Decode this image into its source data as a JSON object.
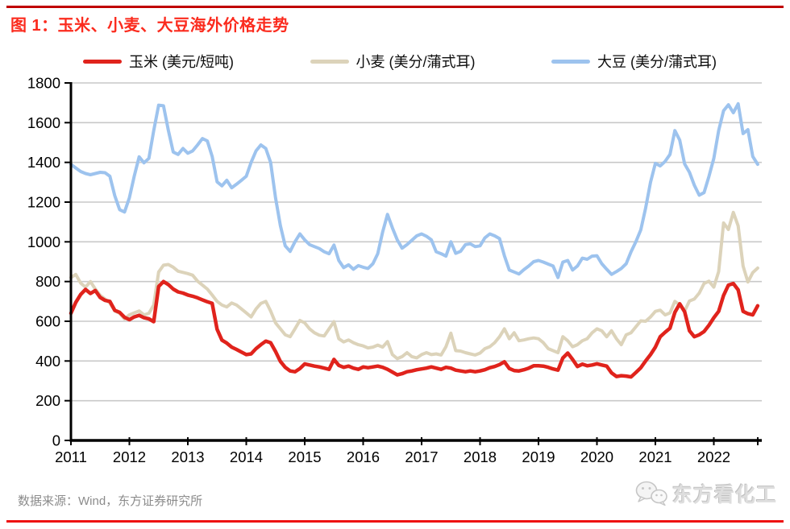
{
  "page": {
    "title": "图 1：玉米、小麦、大豆海外价格走势",
    "source": "数据来源：Wind，东方证券研究所",
    "watermark": {
      "icon": "wechat-icon",
      "text": "东方看化工"
    },
    "colors": {
      "title_text": "#FB2B1E",
      "top_rule": "#C00000",
      "bottom_rule": "#EE1111",
      "source_text": "#8C8C8C",
      "watermark_text": "#DEDEDE",
      "axis": "#000000",
      "gridline": "#C8C8C8",
      "corn": "#E0231C",
      "wheat": "#DCD3BA",
      "soybean": "#9DC3EE"
    }
  },
  "chart_data": {
    "type": "line",
    "title": "图 1：玉米、小麦、大豆海外价格走势",
    "legend_position": "top",
    "grid": "horizontal",
    "x_axis": {
      "start_year": 2011,
      "interval": "monthly",
      "tick_labels": [
        "2011",
        "2012",
        "2013",
        "2014",
        "2015",
        "2016",
        "2017",
        "2018",
        "2019",
        "2020",
        "2021",
        "2022"
      ]
    },
    "y_axis": {
      "min": 0,
      "max": 1800,
      "tick_step": 200,
      "tick_labels": [
        "0",
        "200",
        "400",
        "600",
        "800",
        "1000",
        "1200",
        "1400",
        "1600",
        "1800"
      ]
    },
    "series": [
      {
        "name": "玉米 (美元/短吨)",
        "color": "#E0231C",
        "values": [
          640,
          695,
          735,
          760,
          740,
          755,
          720,
          705,
          700,
          655,
          645,
          620,
          608,
          622,
          630,
          618,
          612,
          598,
          775,
          800,
          785,
          762,
          748,
          742,
          732,
          726,
          718,
          708,
          698,
          690,
          560,
          505,
          490,
          470,
          458,
          445,
          432,
          436,
          462,
          482,
          500,
          492,
          448,
          398,
          368,
          350,
          346,
          362,
          385,
          380,
          374,
          370,
          364,
          358,
          408,
          378,
          368,
          374,
          364,
          358,
          370,
          366,
          370,
          374,
          368,
          358,
          344,
          330,
          336,
          346,
          350,
          356,
          360,
          364,
          370,
          364,
          358,
          368,
          364,
          354,
          350,
          346,
          350,
          346,
          350,
          356,
          366,
          372,
          382,
          396,
          362,
          352,
          350,
          356,
          364,
          376,
          376,
          374,
          368,
          360,
          354,
          415,
          440,
          408,
          372,
          384,
          376,
          380,
          386,
          380,
          374,
          340,
          322,
          326,
          324,
          320,
          342,
          366,
          400,
          432,
          470,
          522,
          545,
          565,
          645,
          688,
          648,
          552,
          522,
          532,
          548,
          580,
          618,
          650,
          730,
          782,
          790,
          758,
          650,
          638,
          632,
          678
        ]
      },
      {
        "name": "小麦 (美分/蒲式耳)",
        "color": "#DCD3BA",
        "values": [
          820,
          836,
          792,
          772,
          800,
          762,
          730,
          712,
          692,
          652,
          640,
          612,
          632,
          642,
          652,
          632,
          640,
          682,
          848,
          882,
          886,
          872,
          852,
          846,
          840,
          832,
          802,
          782,
          762,
          732,
          700,
          682,
          672,
          692,
          682,
          662,
          642,
          622,
          662,
          690,
          700,
          652,
          592,
          562,
          532,
          522,
          562,
          604,
          592,
          562,
          542,
          530,
          526,
          562,
          598,
          512,
          496,
          506,
          492,
          482,
          476,
          466,
          470,
          480,
          470,
          498,
          432,
          412,
          422,
          442,
          422,
          416,
          432,
          442,
          432,
          436,
          430,
          472,
          540,
          452,
          450,
          442,
          436,
          430,
          440,
          462,
          472,
          492,
          522,
          562,
          512,
          542,
          502,
          506,
          512,
          516,
          512,
          492,
          462,
          452,
          442,
          522,
          502,
          472,
          482,
          502,
          512,
          542,
          562,
          552,
          522,
          552,
          512,
          482,
          532,
          542,
          572,
          602,
          600,
          622,
          650,
          656,
          632,
          642,
          700,
          682,
          652,
          702,
          712,
          742,
          790,
          802,
          772,
          850,
          1095,
          1062,
          1148,
          1080,
          878,
          798,
          845,
          868
        ]
      },
      {
        "name": "大豆 (美分/蒲式耳)",
        "color": "#9DC3EE",
        "values": [
          1390,
          1372,
          1354,
          1344,
          1338,
          1344,
          1350,
          1348,
          1330,
          1232,
          1162,
          1150,
          1222,
          1330,
          1428,
          1398,
          1420,
          1560,
          1688,
          1685,
          1562,
          1452,
          1440,
          1470,
          1446,
          1458,
          1488,
          1520,
          1508,
          1430,
          1302,
          1282,
          1310,
          1272,
          1290,
          1310,
          1330,
          1400,
          1458,
          1488,
          1470,
          1400,
          1222,
          1082,
          980,
          952,
          1000,
          1040,
          1010,
          986,
          976,
          966,
          950,
          940,
          984,
          906,
          870,
          884,
          862,
          880,
          872,
          866,
          890,
          940,
          1050,
          1138,
          1070,
          1010,
          968,
          986,
          1008,
          1030,
          1040,
          1028,
          1010,
          950,
          940,
          928,
          1000,
          942,
          952,
          986,
          990,
          976,
          980,
          1020,
          1040,
          1030,
          1016,
          930,
          858,
          848,
          838,
          860,
          878,
          900,
          906,
          898,
          888,
          878,
          820,
          898,
          906,
          858,
          878,
          918,
          912,
          928,
          930,
          890,
          862,
          836,
          850,
          866,
          890,
          950,
          1000,
          1060,
          1170,
          1300,
          1395,
          1382,
          1405,
          1440,
          1560,
          1512,
          1392,
          1350,
          1285,
          1235,
          1248,
          1330,
          1420,
          1560,
          1660,
          1690,
          1650,
          1695,
          1545,
          1565,
          1430,
          1390
        ]
      }
    ]
  }
}
